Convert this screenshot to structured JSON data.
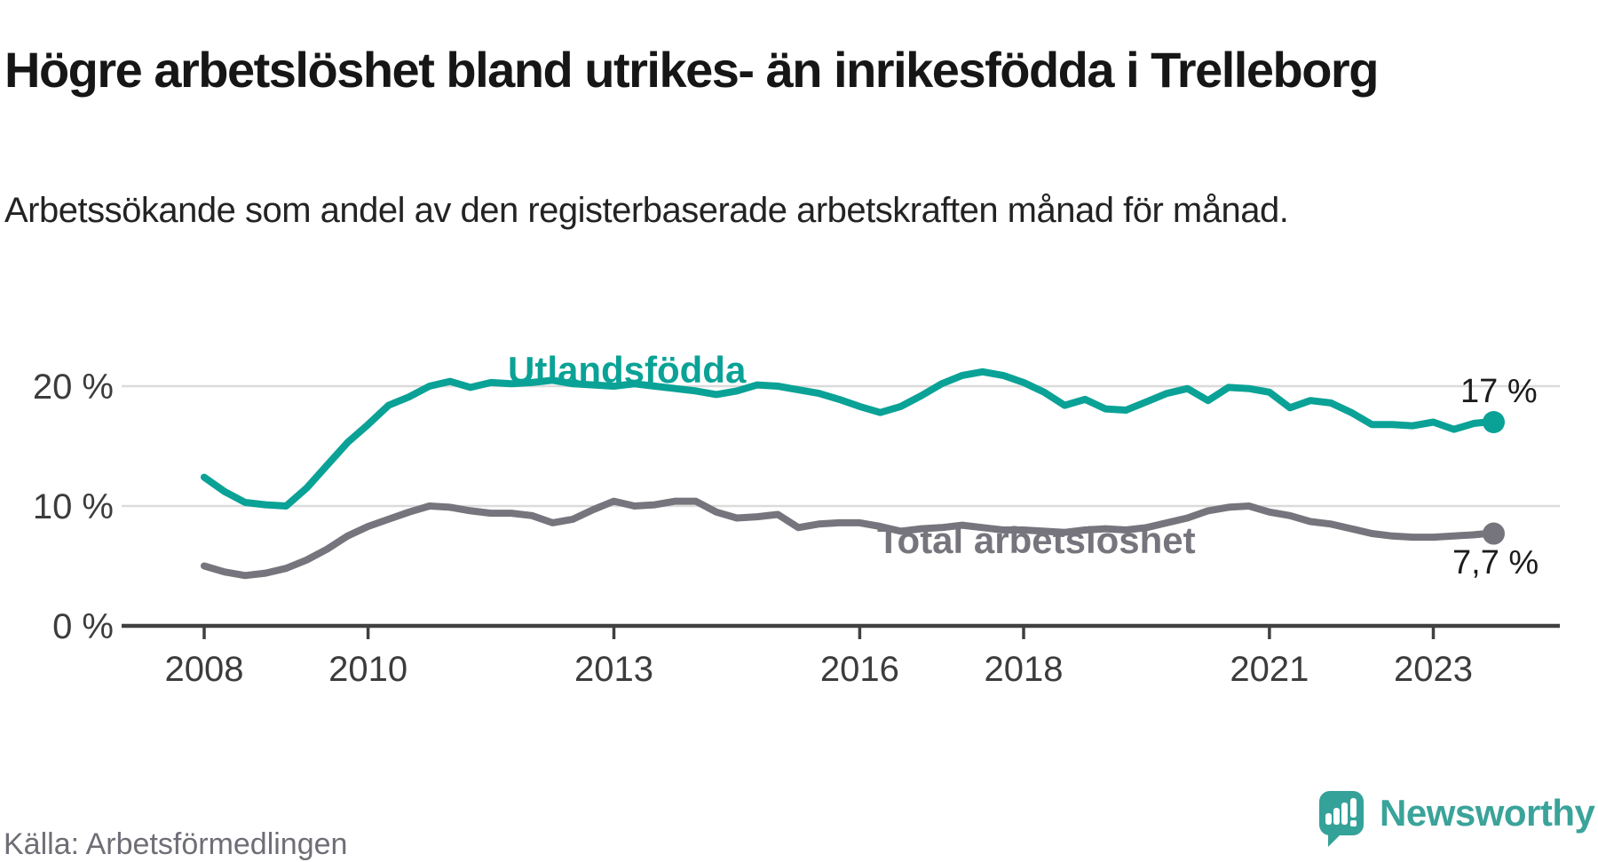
{
  "header": {
    "title": "Högre arbetslöshet bland utrikes- än inrikesfödda i Trelleborg",
    "subtitle": "Arbetssökande som andel av den registerbaserade arbetskraften månad för månad."
  },
  "footer": {
    "source": "Källa: Arbetsförmedlingen",
    "brand": "Newsworthy"
  },
  "colors": {
    "foreign_born_line": "#0AA296",
    "total_line": "#76757D",
    "gridline": "#DBDBDB",
    "axis": "#404040",
    "axis_text": "#3C3C3C",
    "title_text": "#161616",
    "source_text": "#6F6E76",
    "logo_teal": "#35A29A"
  },
  "chart_data": {
    "type": "line",
    "title": "Högre arbetslöshet bland utrikes- än inrikesfödda i Trelleborg",
    "subtitle": "Arbetssökande som andel av den registerbaserade arbetskraften månad för månad.",
    "unit": "%",
    "x_range": [
      2008,
      2023.75
    ],
    "ylim": [
      0,
      22
    ],
    "grid": "horizontal",
    "legend_position": "inline-labels",
    "x_axis": {
      "ticks": [
        {
          "value": 2008,
          "label": "2008"
        },
        {
          "value": 2010,
          "label": "2010"
        },
        {
          "value": 2013,
          "label": "2013"
        },
        {
          "value": 2016,
          "label": "2016"
        },
        {
          "value": 2018,
          "label": "2018"
        },
        {
          "value": 2021,
          "label": "2021"
        },
        {
          "value": 2023,
          "label": "2023"
        }
      ]
    },
    "y_axis": {
      "ticks": [
        {
          "value": 0,
          "label": "0 %",
          "gridline": false
        },
        {
          "value": 10,
          "label": "10 %",
          "gridline": true
        },
        {
          "value": 20,
          "label": "20 %",
          "gridline": true
        }
      ]
    },
    "series": [
      {
        "name": "Utlandsfödda",
        "color": "#0AA296",
        "end_value": 17,
        "end_label": "17 %",
        "points": [
          [
            2008.0,
            12.4
          ],
          [
            2008.25,
            11.2
          ],
          [
            2008.5,
            10.3
          ],
          [
            2008.75,
            10.1
          ],
          [
            2009.0,
            10.0
          ],
          [
            2009.25,
            11.5
          ],
          [
            2009.5,
            13.4
          ],
          [
            2009.75,
            15.3
          ],
          [
            2010.0,
            16.8
          ],
          [
            2010.25,
            18.4
          ],
          [
            2010.5,
            19.1
          ],
          [
            2010.75,
            20.0
          ],
          [
            2011.0,
            20.4
          ],
          [
            2011.25,
            19.9
          ],
          [
            2011.5,
            20.3
          ],
          [
            2011.75,
            20.2
          ],
          [
            2012.0,
            20.3
          ],
          [
            2012.25,
            20.5
          ],
          [
            2012.5,
            20.2
          ],
          [
            2012.75,
            20.1
          ],
          [
            2013.0,
            20.0
          ],
          [
            2013.25,
            20.2
          ],
          [
            2013.5,
            20.0
          ],
          [
            2013.75,
            19.8
          ],
          [
            2014.0,
            19.6
          ],
          [
            2014.25,
            19.3
          ],
          [
            2014.5,
            19.6
          ],
          [
            2014.75,
            20.1
          ],
          [
            2015.0,
            20.0
          ],
          [
            2015.25,
            19.7
          ],
          [
            2015.5,
            19.4
          ],
          [
            2015.75,
            18.9
          ],
          [
            2016.0,
            18.3
          ],
          [
            2016.25,
            17.8
          ],
          [
            2016.5,
            18.3
          ],
          [
            2016.75,
            19.2
          ],
          [
            2017.0,
            20.2
          ],
          [
            2017.25,
            20.9
          ],
          [
            2017.5,
            21.2
          ],
          [
            2017.75,
            20.9
          ],
          [
            2018.0,
            20.3
          ],
          [
            2018.25,
            19.5
          ],
          [
            2018.5,
            18.4
          ],
          [
            2018.75,
            18.9
          ],
          [
            2019.0,
            18.1
          ],
          [
            2019.25,
            18.0
          ],
          [
            2019.5,
            18.7
          ],
          [
            2019.75,
            19.4
          ],
          [
            2020.0,
            19.8
          ],
          [
            2020.25,
            18.8
          ],
          [
            2020.5,
            19.9
          ],
          [
            2020.75,
            19.8
          ],
          [
            2021.0,
            19.5
          ],
          [
            2021.25,
            18.2
          ],
          [
            2021.5,
            18.8
          ],
          [
            2021.75,
            18.6
          ],
          [
            2022.0,
            17.8
          ],
          [
            2022.25,
            16.8
          ],
          [
            2022.5,
            16.8
          ],
          [
            2022.75,
            16.7
          ],
          [
            2023.0,
            17.0
          ],
          [
            2023.25,
            16.4
          ],
          [
            2023.5,
            16.9
          ],
          [
            2023.65,
            17.0
          ]
        ]
      },
      {
        "name": "Total arbetslöshet",
        "color": "#76757D",
        "end_value": 7.7,
        "end_label": "7,7 %",
        "points": [
          [
            2008.0,
            5.0
          ],
          [
            2008.25,
            4.5
          ],
          [
            2008.5,
            4.2
          ],
          [
            2008.75,
            4.4
          ],
          [
            2009.0,
            4.8
          ],
          [
            2009.25,
            5.5
          ],
          [
            2009.5,
            6.4
          ],
          [
            2009.75,
            7.5
          ],
          [
            2010.0,
            8.3
          ],
          [
            2010.25,
            8.9
          ],
          [
            2010.5,
            9.5
          ],
          [
            2010.75,
            10.0
          ],
          [
            2011.0,
            9.9
          ],
          [
            2011.25,
            9.6
          ],
          [
            2011.5,
            9.4
          ],
          [
            2011.75,
            9.4
          ],
          [
            2012.0,
            9.2
          ],
          [
            2012.25,
            8.6
          ],
          [
            2012.5,
            8.9
          ],
          [
            2012.75,
            9.7
          ],
          [
            2013.0,
            10.4
          ],
          [
            2013.25,
            10.0
          ],
          [
            2013.5,
            10.1
          ],
          [
            2013.75,
            10.4
          ],
          [
            2014.0,
            10.4
          ],
          [
            2014.25,
            9.5
          ],
          [
            2014.5,
            9.0
          ],
          [
            2014.75,
            9.1
          ],
          [
            2015.0,
            9.3
          ],
          [
            2015.25,
            8.2
          ],
          [
            2015.5,
            8.5
          ],
          [
            2015.75,
            8.6
          ],
          [
            2016.0,
            8.6
          ],
          [
            2016.25,
            8.3
          ],
          [
            2016.5,
            7.9
          ],
          [
            2016.75,
            8.1
          ],
          [
            2017.0,
            8.2
          ],
          [
            2017.25,
            8.4
          ],
          [
            2017.5,
            8.2
          ],
          [
            2017.75,
            8.0
          ],
          [
            2018.0,
            8.0
          ],
          [
            2018.25,
            7.9
          ],
          [
            2018.5,
            7.8
          ],
          [
            2018.75,
            8.0
          ],
          [
            2019.0,
            8.1
          ],
          [
            2019.25,
            8.0
          ],
          [
            2019.5,
            8.2
          ],
          [
            2019.75,
            8.6
          ],
          [
            2020.0,
            9.0
          ],
          [
            2020.25,
            9.6
          ],
          [
            2020.5,
            9.9
          ],
          [
            2020.75,
            10.0
          ],
          [
            2021.0,
            9.5
          ],
          [
            2021.25,
            9.2
          ],
          [
            2021.5,
            8.7
          ],
          [
            2021.75,
            8.5
          ],
          [
            2022.0,
            8.1
          ],
          [
            2022.25,
            7.7
          ],
          [
            2022.5,
            7.5
          ],
          [
            2022.75,
            7.4
          ],
          [
            2023.0,
            7.4
          ],
          [
            2023.25,
            7.5
          ],
          [
            2023.5,
            7.6
          ],
          [
            2023.65,
            7.7
          ]
        ]
      }
    ]
  }
}
